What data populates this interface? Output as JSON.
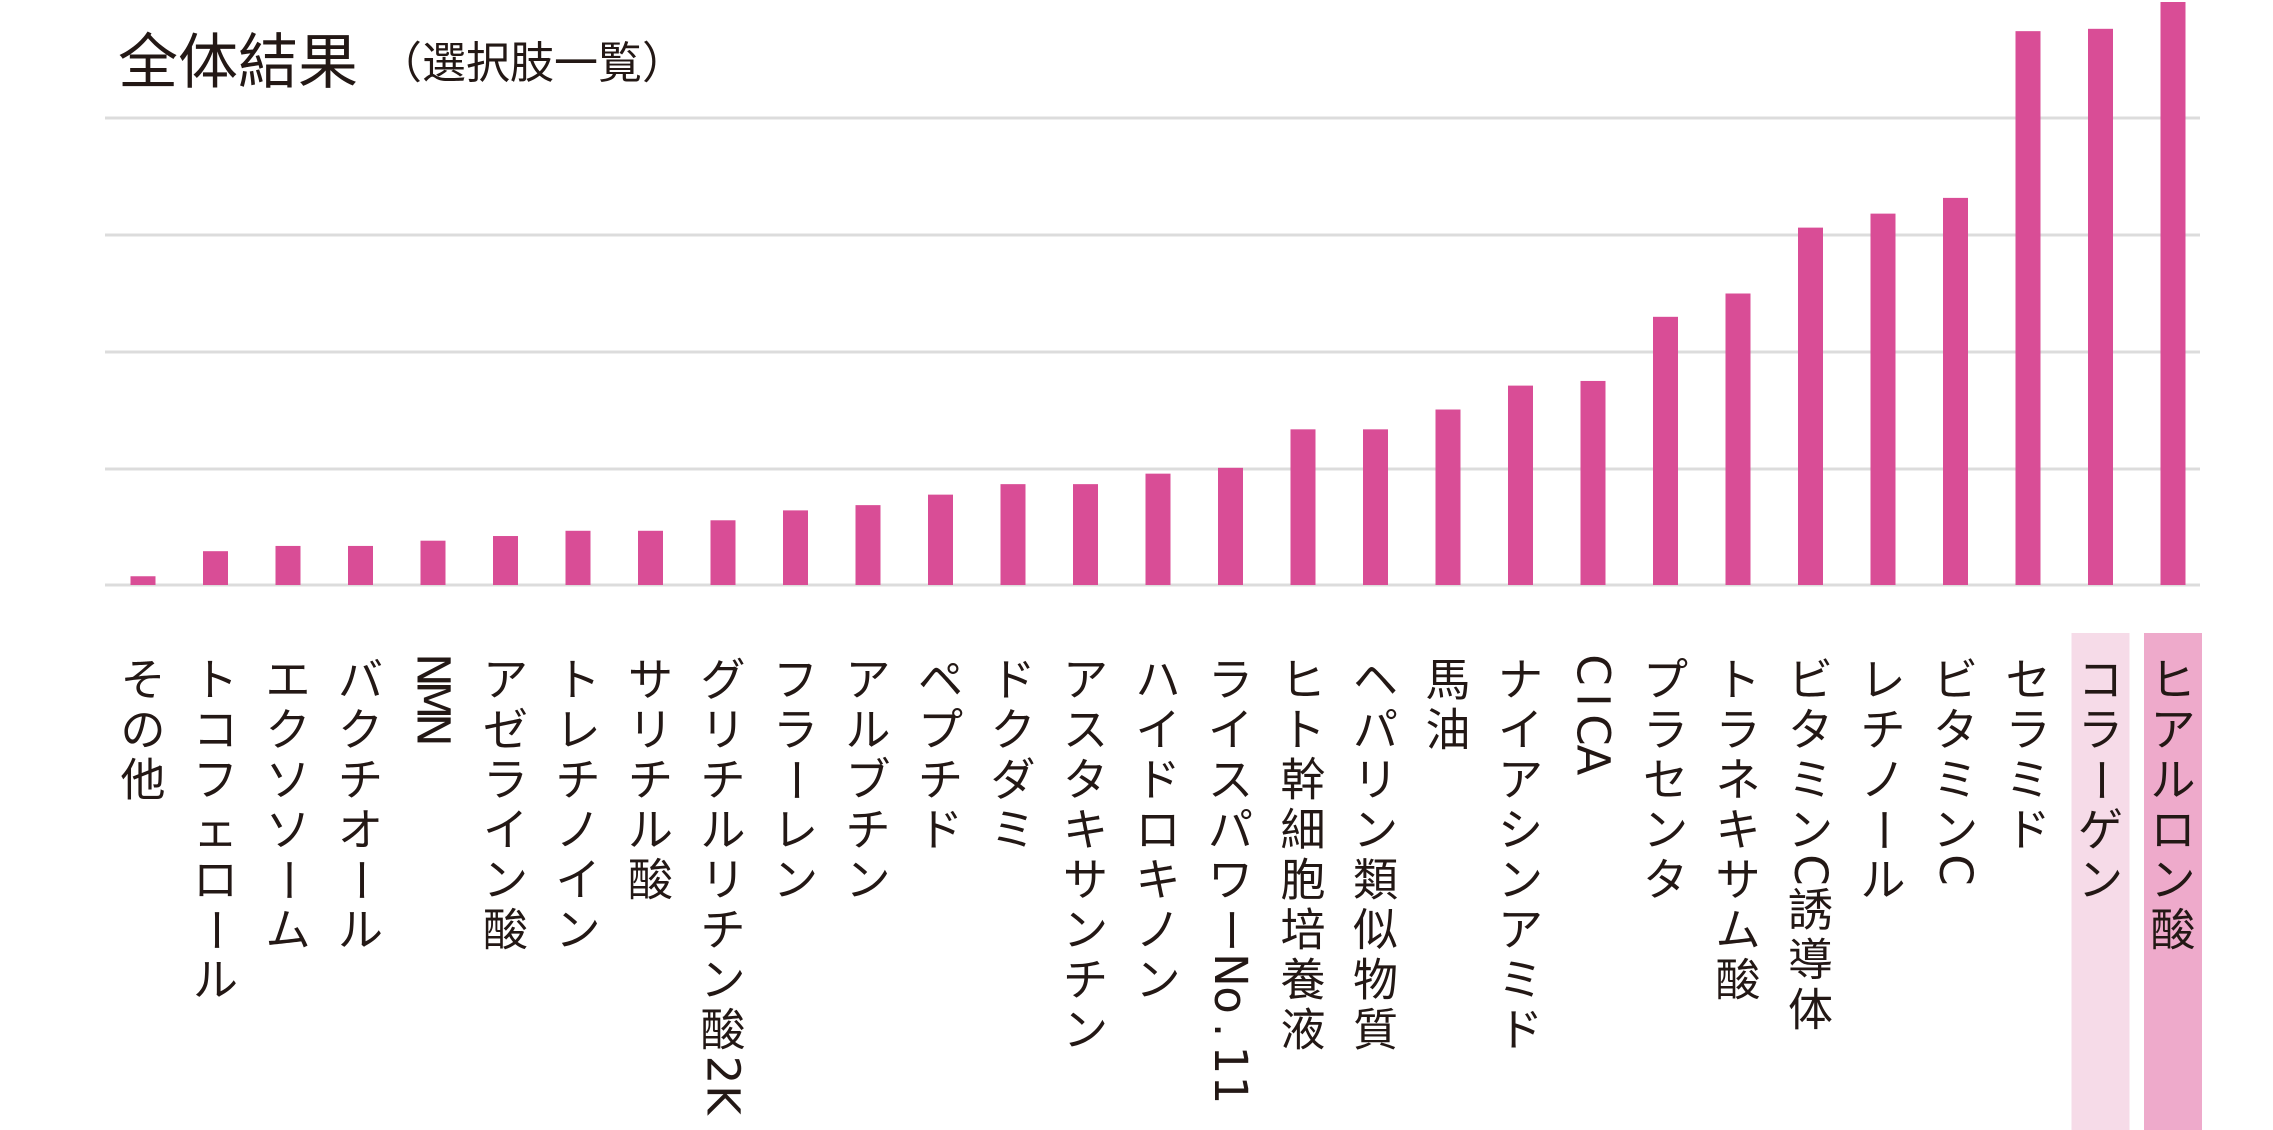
{
  "colors": {
    "bar": "#d94d96",
    "grid": "#dcdcdc",
    "text": "#231815",
    "highlight_strong": "#eeaacb",
    "highlight_light": "#f6dbe8"
  },
  "chart_data": {
    "type": "bar",
    "title": "全体結果",
    "subtitle": "（選択肢一覧）",
    "xlabel": "",
    "ylabel": "",
    "ylim": [
      0,
      100
    ],
    "grid": true,
    "orientation": "vertical-bars-with-vertical-text-labels",
    "categories": [
      "その他",
      "トコフェロール",
      "エクソソーム",
      "バクチオール",
      "NMN",
      "アゼライン酸",
      "トレチノイン",
      "サリチル酸",
      "グリチルリチン酸2K",
      "フラーレン",
      "アルブチン",
      "ペプチド",
      "ドクダミ",
      "アスタキサンチン",
      "ハイドロキノン",
      "ライスパワーNo.11",
      "ヒト幹細胞培養液",
      "ヘパリン類似物質",
      "馬油",
      "ナイアシンアミド",
      "CICA",
      "プラセンタ",
      "トラネキサム酸",
      "ビタミンC誘導体",
      "レチノール",
      "ビタミンC",
      "セラミド",
      "コラーゲン",
      "ヒアルロン酸"
    ],
    "values": [
      1.5,
      5.8,
      6.7,
      6.7,
      7.6,
      8.4,
      9.3,
      9.3,
      11.1,
      12.8,
      13.7,
      15.5,
      17.3,
      17.3,
      19.1,
      20.1,
      26.7,
      26.7,
      30.1,
      34.2,
      35.0,
      46.0,
      50.0,
      61.3,
      63.7,
      66.4,
      95.0,
      95.4,
      100.0
    ],
    "highlights": [
      {
        "category": "コラーゲン",
        "tone": "light"
      },
      {
        "category": "ヒアルロン酸",
        "tone": "strong"
      }
    ]
  }
}
